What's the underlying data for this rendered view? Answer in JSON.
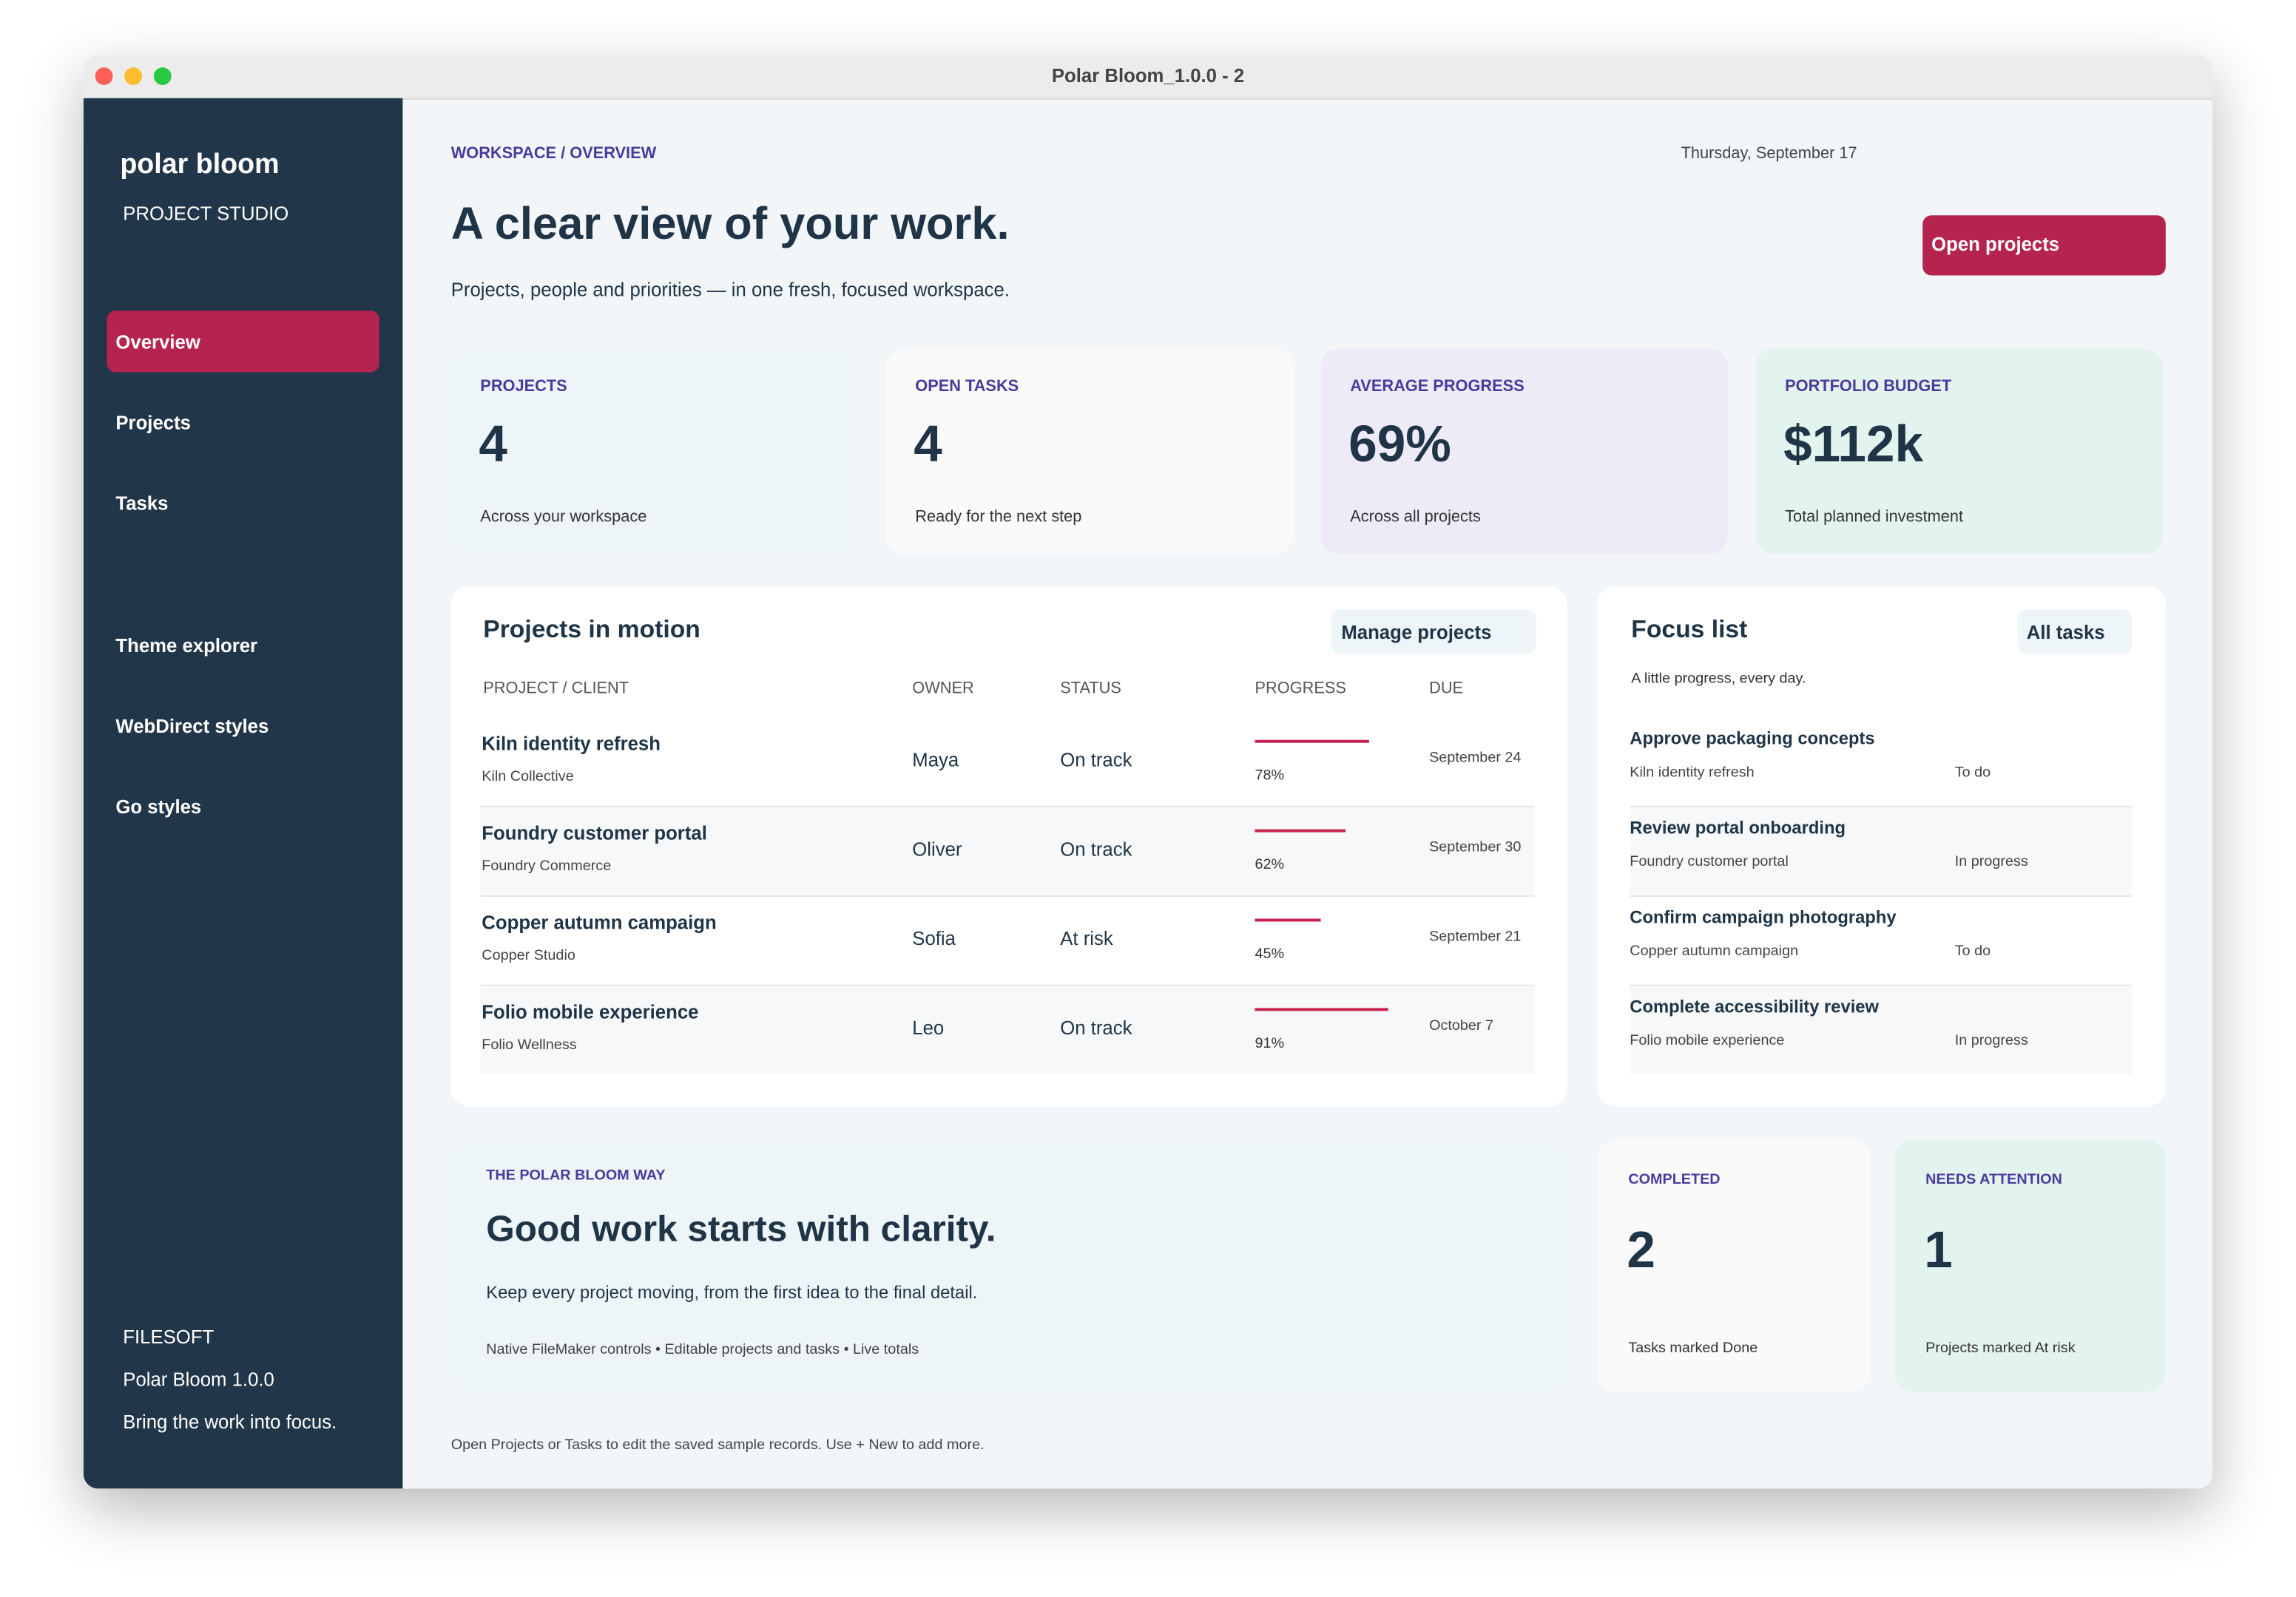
{
  "window": {
    "title": "Polar Bloom_1.0.0 - 2"
  },
  "sidebar": {
    "brand": "polar bloom",
    "subtitle": "PROJECT STUDIO",
    "nav": [
      "Overview",
      "Projects",
      "Tasks"
    ],
    "links": [
      "Theme explorer",
      "WebDirect styles",
      "Go styles"
    ],
    "footer": [
      "FILESOFT",
      "Polar Bloom 1.0.0",
      "Bring the work into focus."
    ]
  },
  "header": {
    "breadcrumb": "WORKSPACE / OVERVIEW",
    "date": "Thursday, September 17",
    "title": "A clear view of your work.",
    "subtitle": "Projects, people and priorities — in one fresh, focused workspace.",
    "button": "Open projects"
  },
  "stats": [
    {
      "label": "PROJECTS",
      "value": "4",
      "note": "Across your workspace"
    },
    {
      "label": "OPEN TASKS",
      "value": "4",
      "note": "Ready for the next step"
    },
    {
      "label": "AVERAGE PROGRESS",
      "value": "69%",
      "note": "Across all projects"
    },
    {
      "label": "PORTFOLIO BUDGET",
      "value": "$112k",
      "note": "Total planned investment"
    }
  ],
  "projects": {
    "title": "Projects in motion",
    "button": "Manage projects",
    "columns": [
      "PROJECT / CLIENT",
      "OWNER",
      "STATUS",
      "PROGRESS",
      "DUE"
    ],
    "rows": [
      {
        "name": "Kiln identity refresh",
        "client": "Kiln Collective",
        "owner": "Maya",
        "status": "On track",
        "progress": {
          "value": 78,
          "label": "78%"
        },
        "due": "September 24"
      },
      {
        "name": "Foundry customer portal",
        "client": "Foundry Commerce",
        "owner": "Oliver",
        "status": "On track",
        "progress": {
          "value": 62,
          "label": "62%"
        },
        "due": "September 30"
      },
      {
        "name": "Copper autumn campaign",
        "client": "Copper Studio",
        "owner": "Sofia",
        "status": "At risk",
        "progress": {
          "value": 45,
          "label": "45%"
        },
        "due": "September 21"
      },
      {
        "name": "Folio mobile experience",
        "client": "Folio Wellness",
        "owner": "Leo",
        "status": "On track",
        "progress": {
          "value": 91,
          "label": "91%"
        },
        "due": "October 7"
      }
    ]
  },
  "focus": {
    "title": "Focus list",
    "button": "All tasks",
    "subtitle": "A little progress, every day.",
    "items": [
      {
        "task": "Approve packaging concepts",
        "project": "Kiln identity refresh",
        "status": "To do"
      },
      {
        "task": "Review portal onboarding",
        "project": "Foundry customer portal",
        "status": "In progress"
      },
      {
        "task": "Confirm campaign photography",
        "project": "Copper autumn campaign",
        "status": "To do"
      },
      {
        "task": "Complete accessibility review",
        "project": "Folio mobile experience",
        "status": "In progress"
      }
    ]
  },
  "banner": {
    "eyebrow": "THE POLAR BLOOM WAY",
    "title": "Good work starts with clarity.",
    "text": "Keep every project moving, from the first idea to the final detail.",
    "features": "Native FileMaker controls • Editable projects and tasks • Live totals"
  },
  "mini_stats": [
    {
      "label": "COMPLETED",
      "value": "2",
      "note": "Tasks marked Done"
    },
    {
      "label": "NEEDS ATTENTION",
      "value": "1",
      "note": "Projects marked At risk"
    }
  ],
  "footnote": "Open Projects or Tasks to edit the saved sample records. Use + New to add more."
}
